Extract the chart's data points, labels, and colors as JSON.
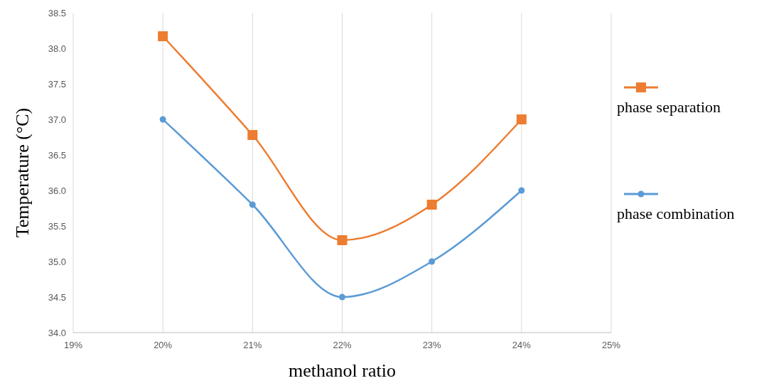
{
  "chart_data": {
    "type": "line",
    "xlabel": "methanol ratio",
    "ylabel": "Temperature (°C)",
    "xlim": [
      19,
      25
    ],
    "xticks": [
      {
        "value": 19,
        "label": "19%"
      },
      {
        "value": 20,
        "label": "20%"
      },
      {
        "value": 21,
        "label": "21%"
      },
      {
        "value": 22,
        "label": "22%"
      },
      {
        "value": 23,
        "label": "23%"
      },
      {
        "value": 24,
        "label": "24%"
      },
      {
        "value": 25,
        "label": "25%"
      }
    ],
    "ylim": [
      34,
      38.5
    ],
    "yticks": [
      {
        "value": 34,
        "label": "34.0"
      },
      {
        "value": 34.5,
        "label": "34.5"
      },
      {
        "value": 35,
        "label": "35.0"
      },
      {
        "value": 35.5,
        "label": "35.5"
      },
      {
        "value": 36,
        "label": "36.0"
      },
      {
        "value": 36.5,
        "label": "36.5"
      },
      {
        "value": 37,
        "label": "37.0"
      },
      {
        "value": 37.5,
        "label": "37.5"
      },
      {
        "value": 38,
        "label": "38.0"
      },
      {
        "value": 38.5,
        "label": "38.5"
      }
    ],
    "x": [
      20,
      21,
      22,
      23,
      24
    ],
    "series": [
      {
        "name": "phase separation",
        "color": "#ed7d31",
        "marker": "square",
        "values": [
          38.17,
          36.78,
          35.3,
          35.8,
          37.0
        ]
      },
      {
        "name": "phase combination",
        "color": "#5b9bd5",
        "marker": "circle",
        "values": [
          37.0,
          35.8,
          34.5,
          35.0,
          36.0
        ]
      }
    ],
    "grid": "x",
    "legend": "right",
    "line_style": "solid"
  }
}
